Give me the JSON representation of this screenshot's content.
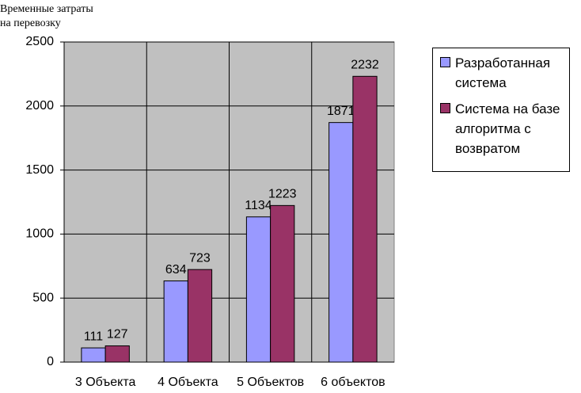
{
  "chart_data": {
    "type": "bar",
    "y_label": [
      "Временные затраты",
      "на перевозку"
    ],
    "categories": [
      "3 Объекта",
      "4 Объекта",
      "5 Объектов",
      "6 объектов"
    ],
    "series": [
      {
        "name": "Разработанная система",
        "color": "#9999ff",
        "values": [
          111,
          634,
          1134,
          1871
        ]
      },
      {
        "name": "Система на базе алгоритма с возвратом",
        "color": "#993366",
        "values": [
          127,
          723,
          1223,
          2232
        ]
      }
    ],
    "ylim": [
      0,
      2500
    ],
    "yticks": [
      0,
      500,
      1000,
      1500,
      2000,
      2500
    ],
    "grid": true,
    "legend": "right"
  }
}
